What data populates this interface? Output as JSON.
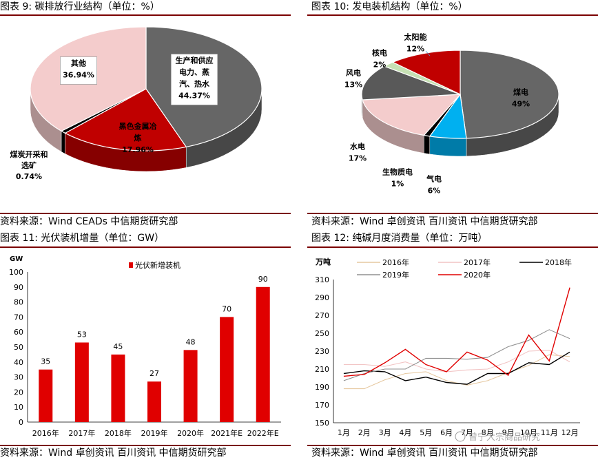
{
  "charts": [
    {
      "header": "图表 9:  碳排放行业结构（单位：%）",
      "source": "资料来源：Wind CEADs 中信期货研究部",
      "chart_data": {
        "type": "pie",
        "slices": [
          {
            "label": [
              "生产和供应",
              "电力、蒸",
              "汽、热水"
            ],
            "value": 44.37,
            "value_label": "44.37%",
            "color": "#666666"
          },
          {
            "label": [
              "黑色金属冶",
              "炼"
            ],
            "value": 17.96,
            "value_label": "17.96%",
            "color": "#c00000"
          },
          {
            "label": [
              "煤炭开采和",
              "选矿"
            ],
            "value": 0.74,
            "value_label": "0.74%",
            "color": "#000000"
          },
          {
            "label": [
              "其他"
            ],
            "value": 36.94,
            "value_label": "36.94%",
            "color": "#f4cccc"
          }
        ]
      }
    },
    {
      "header": "图表 10:  发电装机结构（单位：%）",
      "source": "资料来源：Wind 卓创资讯 百川资讯 中信期货研究部",
      "chart_data": {
        "type": "pie",
        "slices": [
          {
            "label": [
              "煤电"
            ],
            "value": 49,
            "value_label": "49%",
            "color": "#666666"
          },
          {
            "label": [
              "气电"
            ],
            "value": 6,
            "value_label": "6%",
            "color": "#00b0f0"
          },
          {
            "label": [
              "生物质电"
            ],
            "value": 1,
            "value_label": "1%",
            "color": "#000000"
          },
          {
            "label": [
              "水电"
            ],
            "value": 17,
            "value_label": "17%",
            "color": "#f4cccc"
          },
          {
            "label": [
              "风电"
            ],
            "value": 13,
            "value_label": "13%",
            "color": "#595959"
          },
          {
            "label": [
              "核电"
            ],
            "value": 2,
            "value_label": "2%",
            "color": "#c6e0b4"
          },
          {
            "label": [
              "太阳能"
            ],
            "value": 12,
            "value_label": "12%",
            "color": "#c00000"
          }
        ]
      }
    },
    {
      "header": "图表 11:  光伏装机增量（单位：GW）",
      "source": "资料来源：Wind 卓创资讯 百川资讯 中信期货研究部",
      "chart_data": {
        "type": "bar",
        "ylabel": "GW",
        "ylim": [
          0,
          100
        ],
        "yticks": [
          0,
          10,
          20,
          30,
          40,
          50,
          60,
          70,
          80,
          90,
          100
        ],
        "categories": [
          "2016年",
          "2017年",
          "2018年",
          "2019年",
          "2020年",
          "2021年E",
          "2022年E"
        ],
        "series": [
          {
            "name": "光伏新增装机",
            "values": [
              35,
              53,
              45,
              27,
              48,
              70,
              90
            ],
            "color": "#e00000"
          }
        ]
      }
    },
    {
      "header": "图表 12:  纯碱月度消费量（单位：万吨）",
      "source": "资料来源：Wind 卓创资讯 百川资讯 中信期货研究部",
      "watermark": "曾宁大宗商品研究",
      "chart_data": {
        "type": "line",
        "ylabel": "万吨",
        "ylim": [
          150,
          310
        ],
        "yticks": [
          150,
          170,
          190,
          210,
          230,
          250,
          270,
          290,
          310
        ],
        "x": [
          "1月",
          "2月",
          "3月",
          "4月",
          "5月",
          "6月",
          "7月",
          "8月",
          "9月",
          "10月",
          "11月",
          "12月"
        ],
        "series": [
          {
            "name": "2016年",
            "color": "#e6c8a0",
            "values": [
              188,
              188,
              198,
              205,
              207,
              197,
              192,
              197,
              206,
              214,
              226,
              224
            ]
          },
          {
            "name": "2017年",
            "color": "#f2c4c4",
            "values": [
              215,
              215,
              213,
              218,
              210,
              207,
              209,
              210,
              218,
              230,
              231,
              218
            ]
          },
          {
            "name": "2018年",
            "color": "#000000",
            "values": [
              205,
              208,
              207,
              197,
              201,
              195,
              193,
              205,
              205,
              217,
              215,
              229
            ]
          },
          {
            "name": "2019年",
            "color": "#909090",
            "values": [
              197,
              205,
              210,
              210,
              222,
              222,
              221,
              223,
              235,
              242,
              254,
              244
            ]
          },
          {
            "name": "2020年",
            "color": "#e00000",
            "values": [
              202,
              204,
              217,
              232,
              215,
              207,
              229,
              220,
              203,
              248,
              219,
              301
            ]
          }
        ]
      }
    }
  ]
}
